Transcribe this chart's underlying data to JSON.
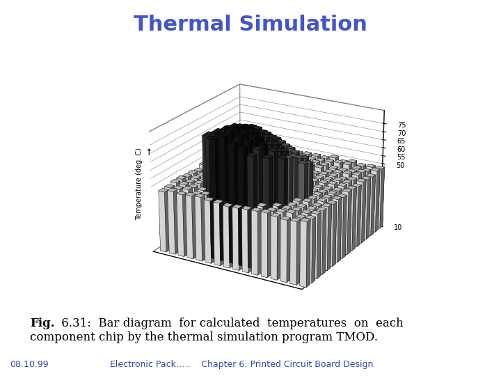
{
  "title": "Thermal Simulation",
  "title_color": "#4455cc",
  "title_fontsize": 22,
  "title_bold": true,
  "zlabel": "Temperature (deg. C)",
  "zmin": 10,
  "zmax": 83,
  "zticks": [
    10,
    50,
    55,
    60,
    65,
    70,
    75
  ],
  "grid_rows": 16,
  "grid_cols": 16,
  "background_color": "#ffffff",
  "caption_bold": "Fig.",
  "caption_rest_line1": " 6.31:  Bar diagram  for calculated  temperatures  on  each",
  "caption_line2": "component chip by the thermal simulation program TMOD.",
  "footer_left": "08.10.99",
  "footer_right": "Electronic Pack…..    Chapter 6: Printed Circuit Board Design",
  "caption_fontsize": 12,
  "footer_fontsize": 9,
  "elev": 22,
  "azim": -60
}
